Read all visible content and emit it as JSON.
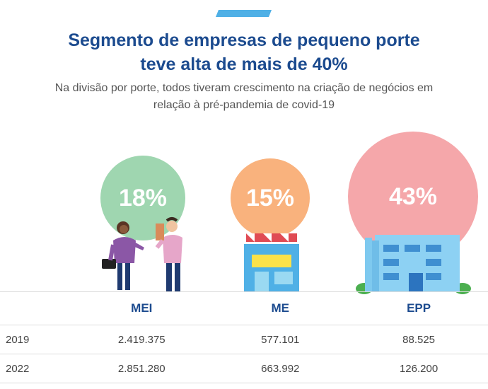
{
  "header": {
    "title_line1": "Segmento de empresas de pequeno porte",
    "title_line2": "teve alta de mais de 40%",
    "subtitle_line1": "Na divisão por porte, todos tiveram crescimento na criação de negócios em",
    "subtitle_line2": "relação à pré-pandemia de covid-19"
  },
  "colors": {
    "title": "#1c4b8f",
    "mei": "#9fd6b0",
    "me": "#f9b27d",
    "epp": "#f5a7aa",
    "accent": "#4fb0e6"
  },
  "chart_data": {
    "type": "table",
    "categories": [
      "MEI",
      "ME",
      "EPP"
    ],
    "growth_labels": [
      "18%",
      "15%",
      "43%"
    ],
    "growth_values": [
      18,
      15,
      43
    ],
    "rows": [
      {
        "year": "2019",
        "values": [
          "2.419.375",
          "577.101",
          "88.525"
        ]
      },
      {
        "year": "2022",
        "values": [
          "2.851.280",
          "663.992",
          "126.200"
        ]
      }
    ]
  }
}
